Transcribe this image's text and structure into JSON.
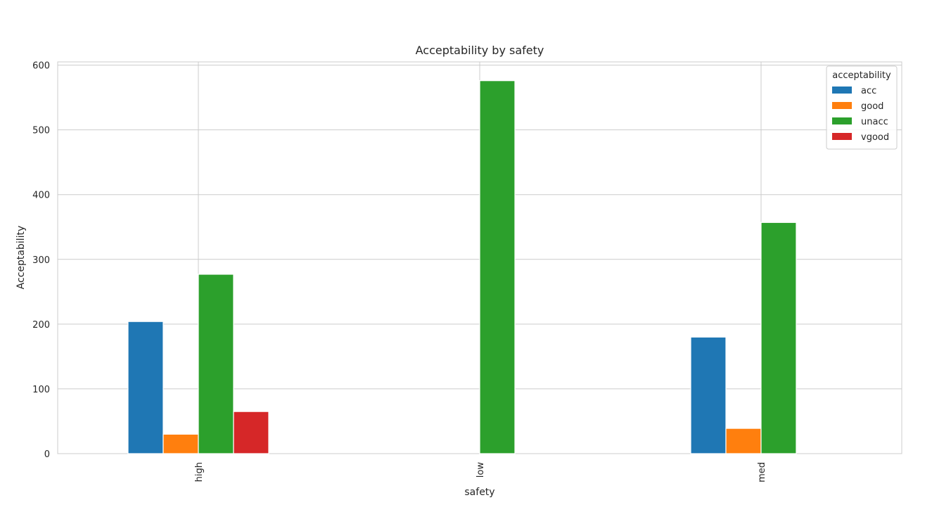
{
  "chart_data": {
    "type": "bar",
    "title": "Acceptability by safety",
    "xlabel": "safety",
    "ylabel": "Acceptability",
    "categories": [
      "high",
      "low",
      "med"
    ],
    "ylim": [
      0,
      605
    ],
    "yticks": [
      0,
      100,
      200,
      300,
      400,
      500,
      600
    ],
    "grid": true,
    "legend": {
      "title": "acceptability",
      "position": "top-right"
    },
    "series": [
      {
        "name": "acc",
        "color": "#1f77b4",
        "values": [
          204,
          0,
          180
        ]
      },
      {
        "name": "good",
        "color": "#ff7f0e",
        "values": [
          30,
          0,
          39
        ]
      },
      {
        "name": "unacc",
        "color": "#2ca02c",
        "values": [
          277,
          576,
          357
        ]
      },
      {
        "name": "vgood",
        "color": "#d62728",
        "values": [
          65,
          0,
          0
        ]
      }
    ]
  }
}
